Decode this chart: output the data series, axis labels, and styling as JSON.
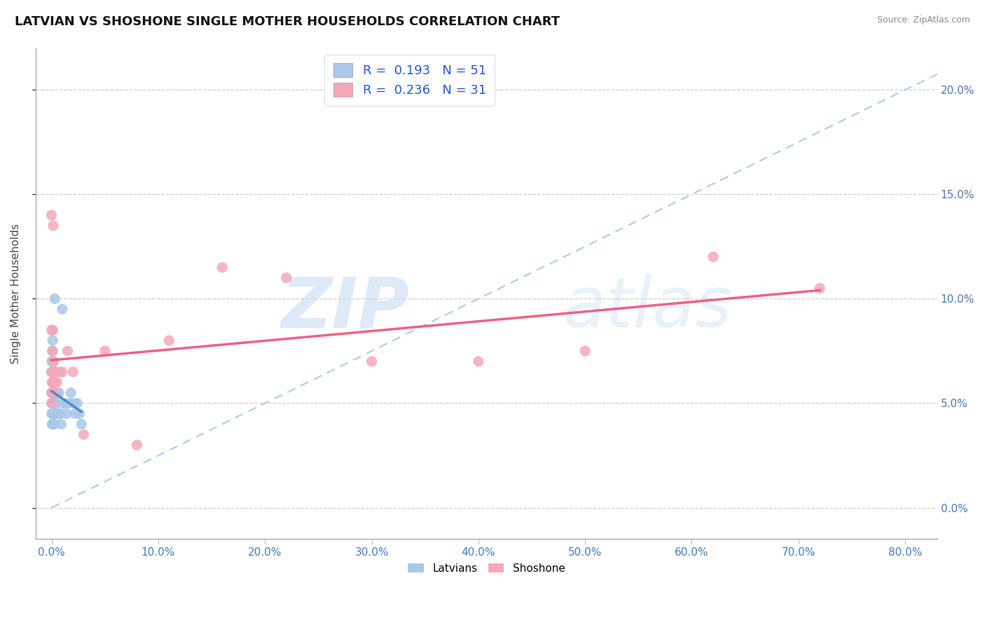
{
  "title": "LATVIAN VS SHOSHONE SINGLE MOTHER HOUSEHOLDS CORRELATION CHART",
  "source": "Source: ZipAtlas.com",
  "ylabel": "Single Mother Households",
  "legend_line1": "R =  0.193   N = 51",
  "legend_line2": "R =  0.236   N = 31",
  "latvian_color": "#aac8e8",
  "shoshone_color": "#f4a8b8",
  "latvian_trend_color": "#5588cc",
  "shoshone_trend_color": "#ee6080",
  "ref_line_color": "#aaccee",
  "xticks": [
    0,
    10,
    20,
    30,
    40,
    50,
    60,
    70,
    80
  ],
  "yticks": [
    0,
    5,
    10,
    15,
    20
  ],
  "xlim": [
    -1.5,
    83.0
  ],
  "ylim": [
    -1.5,
    22.0
  ],
  "latvian_x": [
    0.0,
    0.0,
    0.0,
    0.0,
    0.0,
    0.05,
    0.05,
    0.07,
    0.07,
    0.08,
    0.08,
    0.09,
    0.09,
    0.09,
    0.1,
    0.1,
    0.1,
    0.1,
    0.12,
    0.12,
    0.13,
    0.15,
    0.15,
    0.15,
    0.17,
    0.17,
    0.18,
    0.2,
    0.2,
    0.22,
    0.25,
    0.3,
    0.35,
    0.4,
    0.45,
    0.5,
    0.6,
    0.7,
    0.8,
    0.9,
    1.0,
    1.1,
    1.2,
    1.4,
    1.6,
    1.8,
    2.0,
    2.2,
    2.4,
    2.6,
    2.8
  ],
  "latvian_y": [
    4.5,
    5.0,
    5.5,
    6.5,
    7.0,
    4.0,
    5.5,
    4.5,
    6.0,
    5.0,
    6.5,
    4.5,
    5.5,
    7.5,
    4.0,
    5.0,
    6.0,
    8.0,
    4.5,
    6.0,
    5.5,
    4.0,
    5.0,
    7.0,
    4.5,
    6.5,
    5.0,
    4.5,
    6.0,
    5.5,
    4.0,
    10.0,
    5.0,
    4.5,
    5.5,
    5.0,
    4.5,
    5.5,
    4.5,
    4.0,
    9.5,
    5.0,
    5.0,
    4.5,
    5.0,
    5.5,
    5.0,
    4.5,
    5.0,
    4.5,
    4.0
  ],
  "shoshone_x": [
    0.0,
    0.0,
    0.0,
    0.0,
    0.0,
    0.05,
    0.07,
    0.1,
    0.12,
    0.15,
    0.18,
    0.2,
    0.25,
    0.3,
    0.4,
    0.5,
    0.7,
    1.0,
    1.5,
    2.0,
    3.0,
    5.0,
    8.0,
    11.0,
    16.0,
    22.0,
    30.0,
    40.0,
    50.0,
    62.0,
    72.0
  ],
  "shoshone_y": [
    5.0,
    5.5,
    14.0,
    6.5,
    8.5,
    6.0,
    7.5,
    6.0,
    8.5,
    13.5,
    6.5,
    7.0,
    6.0,
    5.5,
    6.5,
    6.0,
    6.5,
    6.5,
    7.5,
    6.5,
    3.5,
    7.5,
    3.0,
    8.0,
    11.5,
    11.0,
    7.0,
    7.0,
    7.5,
    12.0,
    10.5
  ]
}
